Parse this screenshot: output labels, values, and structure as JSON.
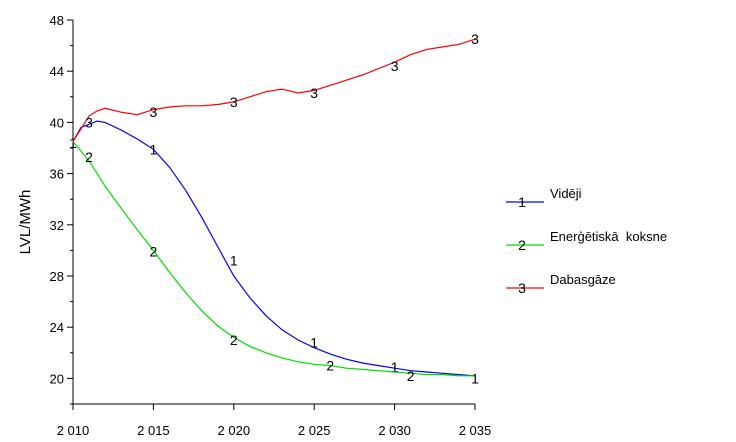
{
  "chart_data": {
    "type": "line",
    "title": "",
    "xlabel": "",
    "ylabel": "LVL/MWh",
    "xlim": [
      2010,
      2035
    ],
    "ylim": [
      18,
      48
    ],
    "x_ticks": [
      "2 010",
      "2 015",
      "2 020",
      "2 025",
      "2 030",
      "2 035"
    ],
    "y_ticks": [
      "20",
      "24",
      "28",
      "32",
      "36",
      "40",
      "44",
      "48"
    ],
    "grid": false,
    "legend_position": "right",
    "series": [
      {
        "name": "Vidēji",
        "marker": "1",
        "color": "#0000ff",
        "x": [
          2010,
          2010.5,
          2011.5,
          2012,
          2013,
          2014,
          2015,
          2016,
          2017,
          2018,
          2019,
          2020,
          2021,
          2022,
          2023,
          2024,
          2025,
          2026,
          2027,
          2028,
          2029,
          2030,
          2031,
          2032,
          2033,
          2034,
          2035
        ],
        "values": [
          38.5,
          39.6,
          40.1,
          40.0,
          39.4,
          38.7,
          37.9,
          36.5,
          34.7,
          32.6,
          30.3,
          28.0,
          26.3,
          24.9,
          23.8,
          23.0,
          22.4,
          21.9,
          21.5,
          21.2,
          21.0,
          20.8,
          20.6,
          20.5,
          20.4,
          20.3,
          20.2
        ],
        "marker_x": [
          2010,
          2015,
          2020,
          2025,
          2030,
          2035
        ],
        "marker_values": [
          38.4,
          37.9,
          29.2,
          22.8,
          20.9,
          20.0
        ]
      },
      {
        "name": "Enerģētiskā  koksne",
        "marker": "2",
        "color": "#00dd00",
        "x": [
          2010,
          2011,
          2012,
          2013,
          2014,
          2015,
          2016,
          2017,
          2018,
          2019,
          2020,
          2021,
          2022,
          2023,
          2024,
          2025,
          2026,
          2027,
          2028,
          2029,
          2030,
          2031,
          2032,
          2033,
          2034,
          2035
        ],
        "values": [
          38.5,
          37.0,
          35.0,
          33.3,
          31.6,
          30.0,
          28.3,
          26.7,
          25.3,
          24.1,
          23.2,
          22.5,
          22.0,
          21.6,
          21.3,
          21.1,
          21.0,
          20.8,
          20.7,
          20.6,
          20.5,
          20.4,
          20.3,
          20.3,
          20.2,
          20.2
        ],
        "marker_x": [
          2011,
          2015,
          2020,
          2026,
          2031
        ],
        "marker_values": [
          37.3,
          29.9,
          23.0,
          21.0,
          20.2
        ]
      },
      {
        "name": "Dabasgāze",
        "marker": "3",
        "color": "#ff0000",
        "x": [
          2010,
          2010.5,
          2011,
          2011.5,
          2012,
          2013,
          2014,
          2015,
          2016,
          2017,
          2018,
          2019,
          2020,
          2021,
          2022,
          2023,
          2024,
          2025,
          2026,
          2027,
          2028,
          2029,
          2030,
          2031,
          2032,
          2033,
          2034,
          2035
        ],
        "values": [
          38.5,
          39.5,
          40.5,
          40.9,
          41.1,
          40.8,
          40.6,
          41.0,
          41.2,
          41.3,
          41.3,
          41.4,
          41.6,
          42.0,
          42.4,
          42.6,
          42.3,
          42.5,
          42.9,
          43.3,
          43.7,
          44.2,
          44.7,
          45.3,
          45.7,
          45.9,
          46.1,
          46.5
        ],
        "marker_x": [
          2011,
          2015,
          2020,
          2025,
          2030,
          2035
        ],
        "marker_values": [
          40.0,
          40.8,
          41.6,
          42.3,
          44.4,
          46.5
        ]
      }
    ]
  }
}
